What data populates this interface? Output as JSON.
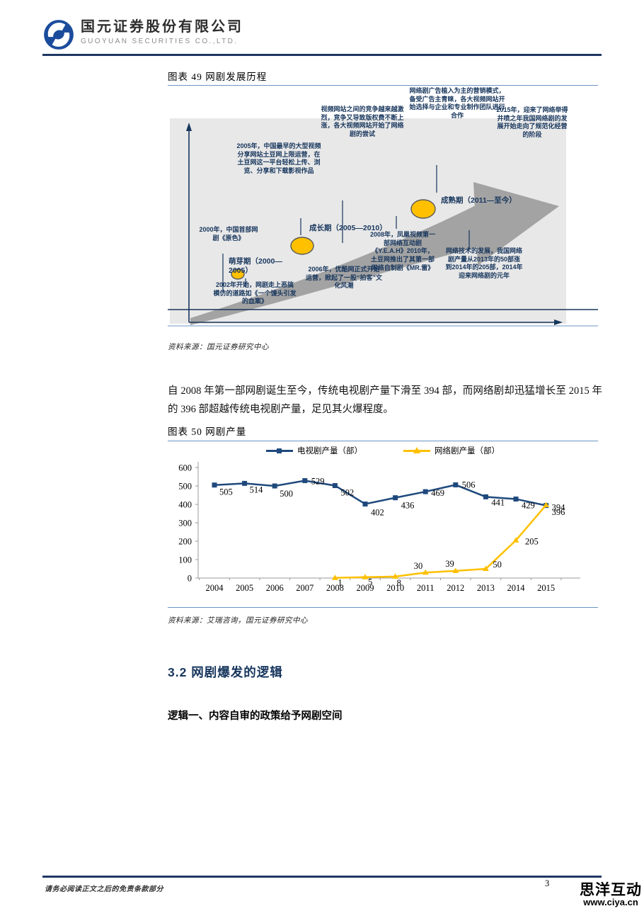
{
  "header": {
    "company_cn": "国元证券股份有限公司",
    "company_en": "GUOYUAN SECURITIES CO.,LTD."
  },
  "figure49": {
    "title": "图表 49 网剧发展历程",
    "source": "资料来源：国元证券研究中心",
    "stages": [
      "萌芽期（2000—2005）",
      "成长期（2005—2010）",
      "成熟期（2011—至今）"
    ],
    "annotations": [
      "2005年，中国最早的大型视频分享网站土豆网上限运营，在土豆网这一平台轻松上传、浏览、分享和下载影视作品",
      "视频网站之间的竞争越来越激烈，竞争又导致版权费不断上涨，各大视频网站开始了网络剧的尝试",
      "网络剧广告植入为主的营销模式，备受广告主青睐，各大视频网站开始选择与企业和专业制作团队进行合作",
      "2015年，迎来了网络举得井喷之年我国网络剧的发展开始走向了规范化经营的阶段",
      "2000年，中国首部网剧《原色》",
      "2002年开始，网剧走上恶搞模仿的道路如《一个馒头引发的血案》",
      "2006年，优酷网正式开始运营，掀起了一股“拍客”文化风潮",
      "2008年，凤凰视频第一部网络互动剧《Y.E.A.H》2010年，土豆网推出了其第一部网络自制剧《MR.雷》",
      "网络技术的发展，我国网络剧产量从2013年的50部涨到2014年的205部，2014年迎来网络剧的元年"
    ],
    "colors": {
      "arrow": "#A3A3A3",
      "background": "#E8E8E8",
      "ellipse": "#FFC000",
      "text": "#17365D"
    }
  },
  "paragraph1": "自 2008 年第一部网剧诞生至今，传统电视剧产量下滑至 394 部，而网络剧却迅猛增长至 2015 年的 396 部超越传统电视剧产量，足见其火爆程度。",
  "figure50": {
    "title": "图表 50 网剧产量",
    "source": "资料来源：艾瑞咨询，国元证券研究中心"
  },
  "chart_data": {
    "type": "line",
    "title": "图表 50 网剧产量",
    "categories": [
      "2004",
      "2005",
      "2006",
      "2007",
      "2008",
      "2009",
      "2010",
      "2011",
      "2012",
      "2013",
      "2014",
      "2015"
    ],
    "series": [
      {
        "name": "电视剧产量（部）",
        "color": "#1F497D",
        "marker": "square",
        "values": [
          505,
          514,
          500,
          529,
          502,
          402,
          436,
          469,
          506,
          441,
          429,
          394
        ]
      },
      {
        "name": "网络剧产量（部）",
        "color": "#FFC000",
        "marker": "triangle",
        "values": [
          null,
          null,
          null,
          null,
          1,
          5,
          8,
          30,
          39,
          50,
          205,
          396
        ]
      }
    ],
    "ylim": [
      0,
      600
    ],
    "ytick_step": 100,
    "grid": false,
    "legend_position": "top",
    "data_labels": true
  },
  "section": {
    "heading": "3.2 网剧爆发的逻辑",
    "body": "逻辑一、内容自审的政策给予网剧空间"
  },
  "footer": {
    "disclaimer": "请务必阅读正文之后的免责条款部分",
    "page_number": "3",
    "watermark_name": "思洋互动",
    "watermark_url": "www.ciya.cn"
  }
}
